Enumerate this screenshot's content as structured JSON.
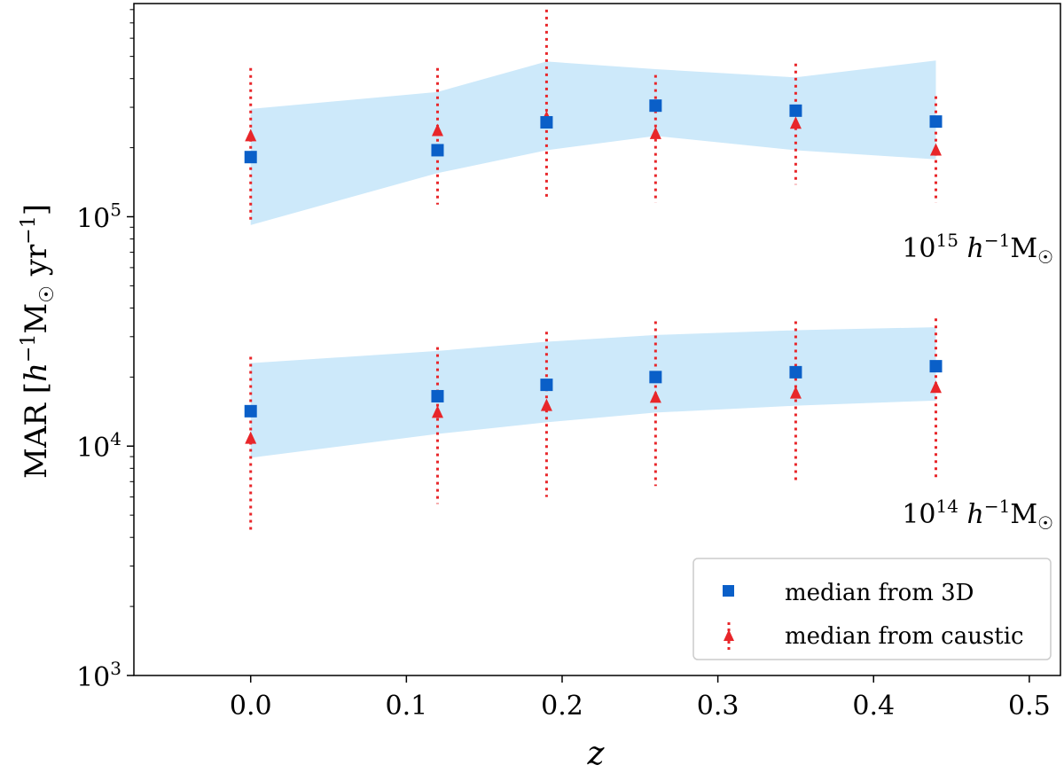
{
  "chart_data": {
    "type": "scatter",
    "title": "",
    "xlabel": "z",
    "ylabel_main": "MAR",
    "ylabel_h": "h",
    "ylabel_h_sup": "−1",
    "ylabel_msun": "M",
    "ylabel_yr": "yr",
    "ylabel_yr_sup": "−1",
    "yscale": "log",
    "xlim": [
      -0.075,
      0.52
    ],
    "ylim": [
      1000,
      850000
    ],
    "xticks": [
      0.0,
      0.1,
      0.2,
      0.3,
      0.4,
      0.5
    ],
    "xtick_labels": [
      "0.0",
      "0.1",
      "0.2",
      "0.3",
      "0.4",
      "0.5"
    ],
    "yticks": [
      {
        "base": "10",
        "exp": "3",
        "value": 1000
      },
      {
        "base": "10",
        "exp": "4",
        "value": 10000
      },
      {
        "base": "10",
        "exp": "5",
        "value": 100000
      }
    ],
    "legend_position": "bottom-right",
    "series_meta": [
      {
        "name": "median from 3D",
        "color": "#0a5fc8",
        "marker": "square"
      },
      {
        "name": "median from caustic",
        "color": "#e8262a",
        "marker": "triangle"
      }
    ],
    "band_color": "#cde9fa",
    "groups": [
      {
        "label_base": "10",
        "label_exp": "15",
        "label_h": "h",
        "label_h_sup": "−1",
        "label_m": "M",
        "z": [
          0.0,
          0.12,
          0.19,
          0.26,
          0.35,
          0.44
        ],
        "median_3d": [
          182000,
          195000,
          258000,
          305000,
          290000,
          260000
        ],
        "band_lower": [
          92000,
          155000,
          195000,
          225000,
          195000,
          178000
        ],
        "band_upper": [
          295000,
          350000,
          475000,
          440000,
          405000,
          480000
        ],
        "median_caustic": [
          225000,
          237000,
          270000,
          230000,
          255000,
          195000
        ],
        "caustic_err_low": [
          93000,
          113000,
          117000,
          115000,
          138000,
          115000
        ],
        "caustic_err_high": [
          445000,
          445000,
          800000,
          415000,
          465000,
          335000
        ]
      },
      {
        "label_base": "10",
        "label_exp": "14",
        "label_h": "h",
        "label_h_sup": "−1",
        "label_m": "M",
        "z": [
          0.0,
          0.12,
          0.19,
          0.26,
          0.35,
          0.44
        ],
        "median_3d": [
          14200,
          16500,
          18500,
          20000,
          21000,
          22300
        ],
        "band_lower": [
          8900,
          11300,
          12700,
          14000,
          15000,
          15800
        ],
        "band_upper": [
          23000,
          26000,
          28500,
          30500,
          32000,
          33000
        ],
        "median_caustic": [
          10800,
          14000,
          15000,
          16300,
          17000,
          18000
        ],
        "caustic_err_low": [
          4200,
          5600,
          6000,
          6700,
          6900,
          7300
        ],
        "caustic_err_high": [
          24500,
          27000,
          31500,
          35000,
          35000,
          36000
        ]
      }
    ]
  }
}
